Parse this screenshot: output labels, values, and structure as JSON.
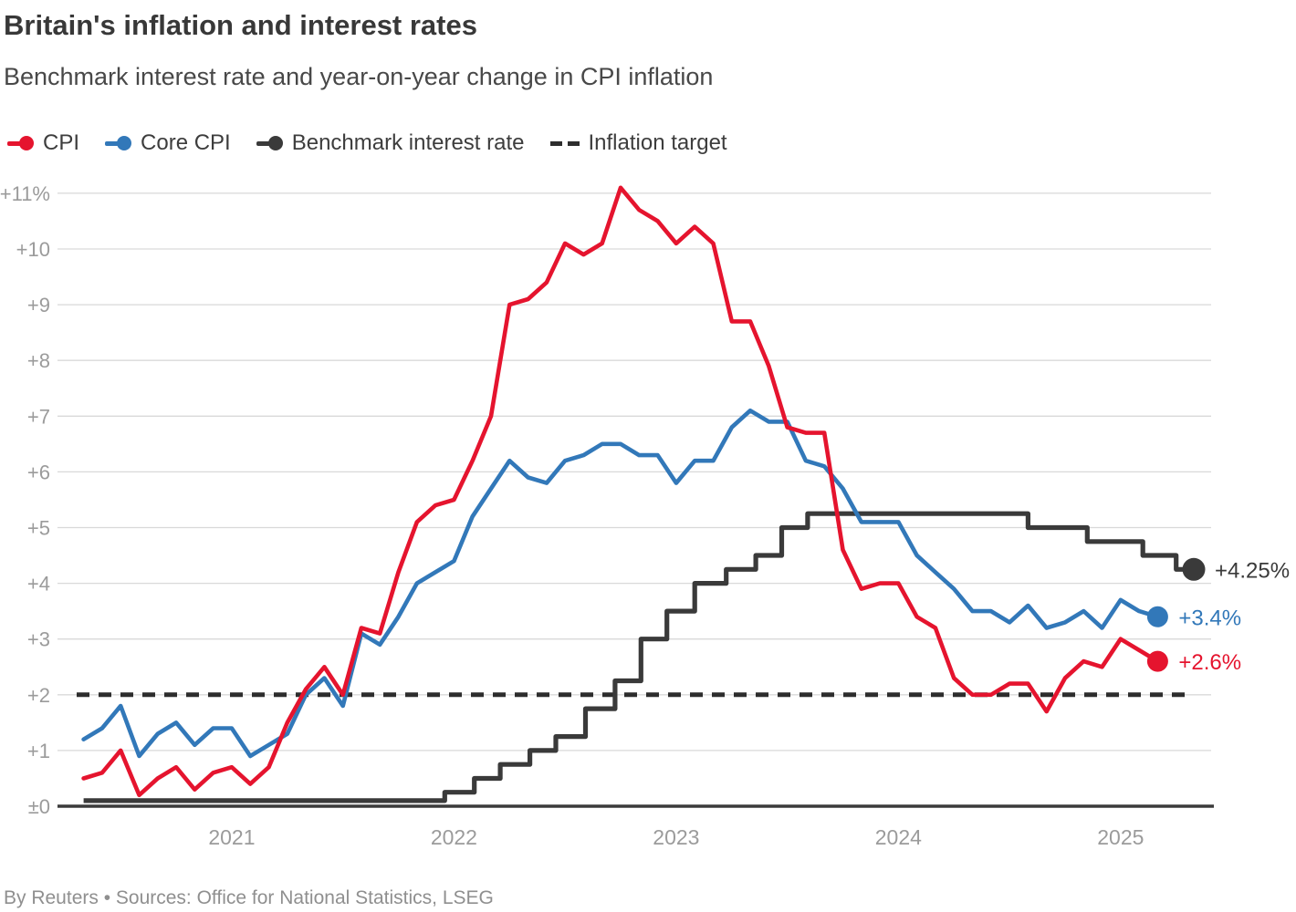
{
  "header": {
    "title": "Britain's inflation and interest rates",
    "subtitle": "Benchmark interest rate and year-on-year change in CPI inflation"
  },
  "legend": {
    "position": "top",
    "items": [
      {
        "id": "cpi",
        "label": "CPI",
        "color": "#e5142e",
        "swatch": "line-dot"
      },
      {
        "id": "core-cpi",
        "label": "Core CPI",
        "color": "#3278b9",
        "swatch": "line-dot"
      },
      {
        "id": "benchmark-rate",
        "label": "Benchmark interest rate",
        "color": "#3a3a3a",
        "swatch": "line-dot"
      },
      {
        "id": "inflation-target",
        "label": "Inflation target",
        "color": "#2d2d2d",
        "swatch": "dashes"
      }
    ]
  },
  "chart_data": {
    "type": "line",
    "title": "Britain's inflation and interest rates",
    "subtitle": "Benchmark interest rate and year-on-year change in CPI inflation",
    "xlabel": "",
    "ylabel": "",
    "ylim": [
      0,
      11
    ],
    "grid": "horizontal",
    "legend_position": "top",
    "x_start": "2020-05",
    "x_interval": "monthly",
    "x_axis": {
      "year_labels": [
        "2021",
        "2022",
        "2023",
        "2024",
        "2025"
      ],
      "tick_color": "#9b9b9b"
    },
    "y_axis": {
      "ticks": [
        "±0",
        "+1",
        "+2",
        "+3",
        "+4",
        "+5",
        "+6",
        "+7",
        "+8",
        "+9",
        "+10",
        "+11%"
      ],
      "tick_color": "#9b9b9b",
      "gridline_color": "#d9d9d9",
      "baseline_color": "#3a3a3a"
    },
    "target": {
      "label": "Inflation target",
      "value": 2,
      "color": "#2d2d2d",
      "dash": [
        14,
        10
      ]
    },
    "series": [
      {
        "id": "cpi",
        "name": "CPI",
        "style": "line",
        "color": "#e5142e",
        "end_label": "+2.6%",
        "monthly_values": [
          0.5,
          0.6,
          1.0,
          0.2,
          0.5,
          0.7,
          0.3,
          0.6,
          0.7,
          0.4,
          0.7,
          1.5,
          2.1,
          2.5,
          2.0,
          3.2,
          3.1,
          4.2,
          5.1,
          5.4,
          5.5,
          6.2,
          7.0,
          9.0,
          9.1,
          9.4,
          10.1,
          9.9,
          10.1,
          11.1,
          10.7,
          10.5,
          10.1,
          10.4,
          10.1,
          8.7,
          8.7,
          7.9,
          6.8,
          6.7,
          6.7,
          4.6,
          3.9,
          4.0,
          4.0,
          3.4,
          3.2,
          2.3,
          2.0,
          2.0,
          2.2,
          2.2,
          1.7,
          2.3,
          2.6,
          2.5,
          3.0,
          2.8,
          2.6
        ]
      },
      {
        "id": "core-cpi",
        "name": "Core CPI",
        "style": "line",
        "color": "#3278b9",
        "end_label": "+3.4%",
        "monthly_values": [
          1.2,
          1.4,
          1.8,
          0.9,
          1.3,
          1.5,
          1.1,
          1.4,
          1.4,
          0.9,
          1.1,
          1.3,
          2.0,
          2.3,
          1.8,
          3.1,
          2.9,
          3.4,
          4.0,
          4.2,
          4.4,
          5.2,
          5.7,
          6.2,
          5.9,
          5.8,
          6.2,
          6.3,
          6.5,
          6.5,
          6.3,
          6.3,
          5.8,
          6.2,
          6.2,
          6.8,
          7.1,
          6.9,
          6.9,
          6.2,
          6.1,
          5.7,
          5.1,
          5.1,
          5.1,
          4.5,
          4.2,
          3.9,
          3.5,
          3.5,
          3.3,
          3.6,
          3.2,
          3.3,
          3.5,
          3.2,
          3.7,
          3.5,
          3.4
        ]
      },
      {
        "id": "benchmark-rate",
        "name": "Benchmark interest rate",
        "style": "step",
        "color": "#3a3a3a",
        "end_label": "+4.25%",
        "steps": [
          [
            0,
            0.1
          ],
          [
            19.5,
            0.25
          ],
          [
            21.1,
            0.5
          ],
          [
            22.5,
            0.75
          ],
          [
            24.1,
            1.0
          ],
          [
            25.5,
            1.25
          ],
          [
            27.1,
            1.75
          ],
          [
            28.7,
            2.25
          ],
          [
            30.1,
            3.0
          ],
          [
            31.5,
            3.5
          ],
          [
            33.0,
            4.0
          ],
          [
            34.7,
            4.25
          ],
          [
            36.3,
            4.5
          ],
          [
            37.7,
            5.0
          ],
          [
            39.1,
            5.25
          ],
          [
            51.0,
            5.0
          ],
          [
            54.2,
            4.75
          ],
          [
            57.2,
            4.5
          ],
          [
            59.0,
            4.25
          ]
        ],
        "end_month": 59.95
      }
    ]
  },
  "footer": {
    "text": "By Reuters • Sources: Office for National Statistics, LSEG"
  }
}
